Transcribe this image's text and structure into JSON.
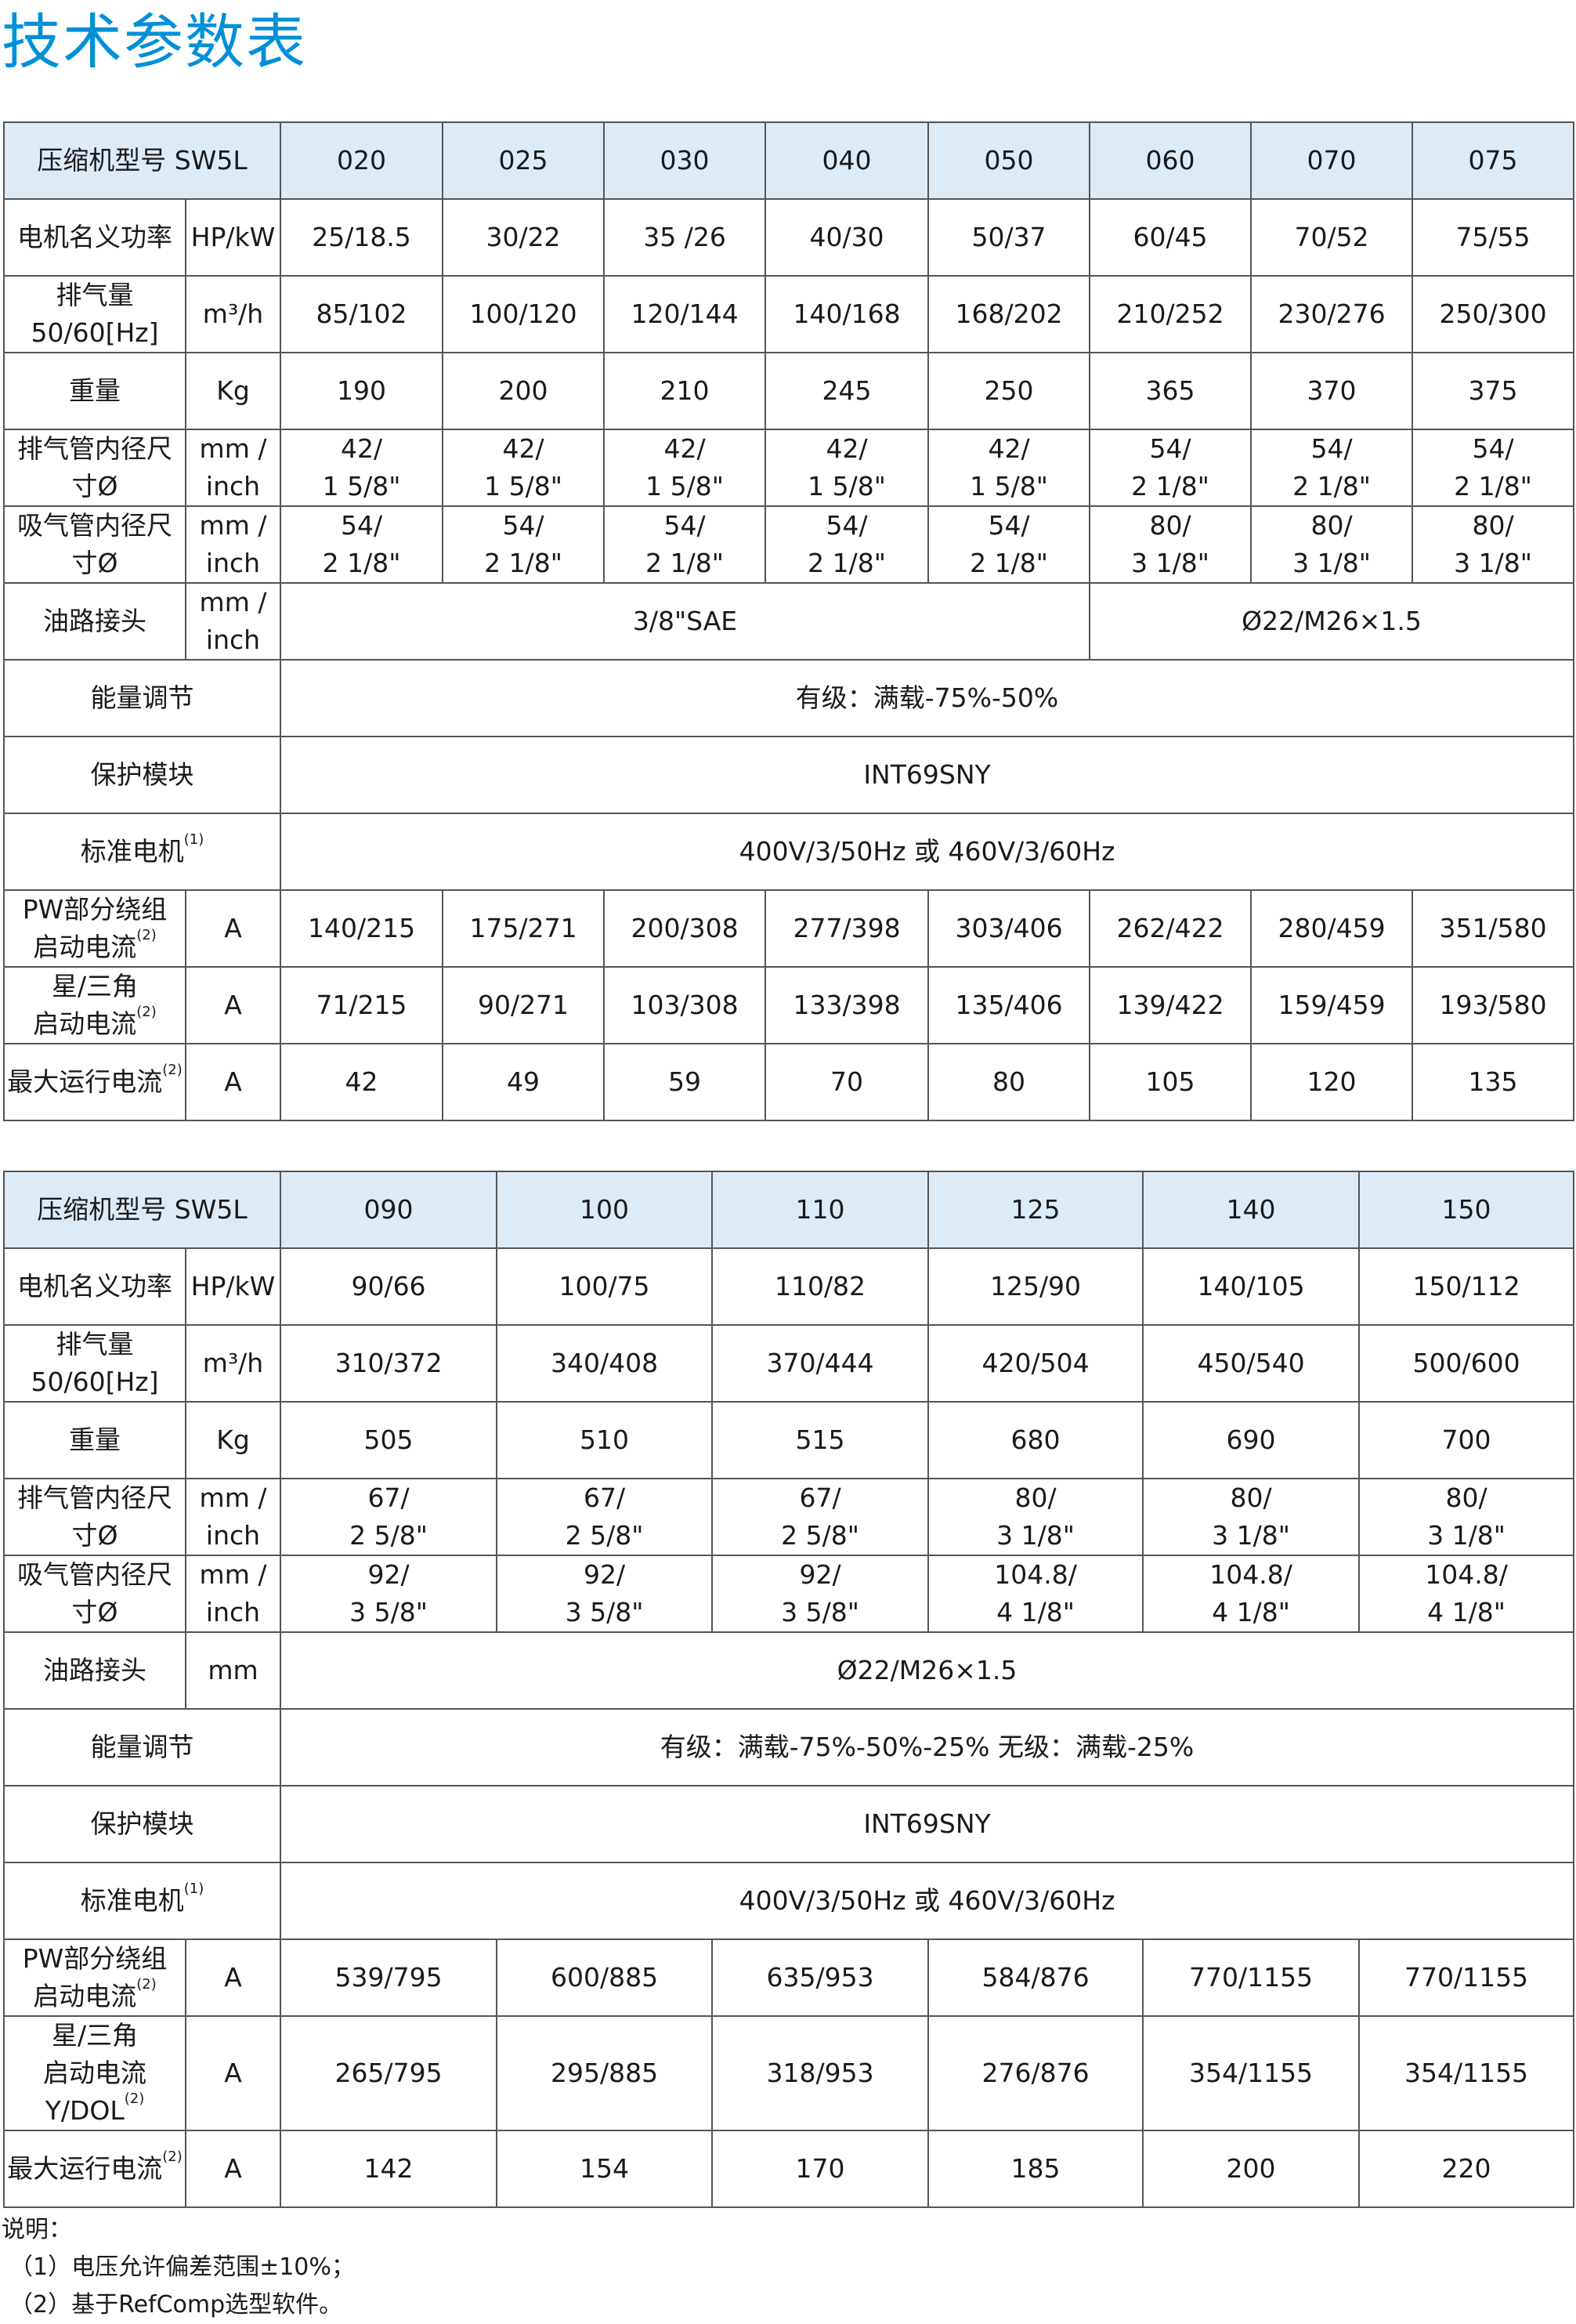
{
  "title": "技术参数表",
  "tables": [
    {
      "model_label": "压缩机型号 SW5L",
      "models": [
        "020",
        "025",
        "030",
        "040",
        "050",
        "060",
        "070",
        "075"
      ],
      "rows": [
        {
          "label": "电机名义功率",
          "unit": "HP/kW",
          "cells": [
            {
              "text": "25/18.5"
            },
            {
              "text": "30/22"
            },
            {
              "text": "35 /26"
            },
            {
              "text": "40/30"
            },
            {
              "text": "50/37"
            },
            {
              "text": "60/45"
            },
            {
              "text": "70/52"
            },
            {
              "text": "75/55"
            }
          ]
        },
        {
          "label": "排气量\n50/60[Hz]",
          "unit": "m³/h",
          "cells": [
            {
              "text": "85/102"
            },
            {
              "text": "100/120"
            },
            {
              "text": "120/144"
            },
            {
              "text": "140/168"
            },
            {
              "text": "168/202"
            },
            {
              "text": "210/252"
            },
            {
              "text": "230/276"
            },
            {
              "text": "250/300"
            }
          ]
        },
        {
          "label": "重量",
          "unit": "Kg",
          "cells": [
            {
              "text": "190"
            },
            {
              "text": "200"
            },
            {
              "text": "210"
            },
            {
              "text": "245"
            },
            {
              "text": "250"
            },
            {
              "text": "365"
            },
            {
              "text": "370"
            },
            {
              "text": "375"
            }
          ]
        },
        {
          "label": "排气管内径尺寸Ø",
          "unit": "mm /\ninch",
          "cells": [
            {
              "text": "42/\n1 5/8\""
            },
            {
              "text": "42/\n1 5/8\""
            },
            {
              "text": "42/\n1 5/8\""
            },
            {
              "text": "42/\n1 5/8\""
            },
            {
              "text": "42/\n1 5/8\""
            },
            {
              "text": "54/\n2 1/8\""
            },
            {
              "text": "54/\n2 1/8\""
            },
            {
              "text": "54/\n2 1/8\""
            }
          ]
        },
        {
          "label": "吸气管内径尺寸Ø",
          "unit": "mm /\ninch",
          "cells": [
            {
              "text": "54/\n2 1/8\""
            },
            {
              "text": "54/\n2 1/8\""
            },
            {
              "text": "54/\n2 1/8\""
            },
            {
              "text": "54/\n2 1/8\""
            },
            {
              "text": "54/\n2 1/8\""
            },
            {
              "text": "80/\n3 1/8\""
            },
            {
              "text": "80/\n3 1/8\""
            },
            {
              "text": "80/\n3 1/8\""
            }
          ]
        },
        {
          "label": "油路接头",
          "unit": "mm /\ninch",
          "cells": [
            {
              "text": "3/8\"SAE",
              "span": 5
            },
            {
              "text": "Ø22/M26×1.5",
              "span": 3
            }
          ]
        },
        {
          "label": "能量调节",
          "cells": [
            {
              "text": "有级：满载-75%-50%",
              "span": 8
            }
          ]
        },
        {
          "label": "保护模块",
          "cells": [
            {
              "text": "INT69SNY",
              "span": 8
            }
          ]
        },
        {
          "label": "标准电机",
          "sup": "(1)",
          "cells": [
            {
              "text": "400V/3/50Hz 或 460V/3/60Hz",
              "span": 8
            }
          ]
        },
        {
          "label": "PW部分绕组\n启动电流",
          "sup": "(2)",
          "unit": "A",
          "cells": [
            {
              "text": "140/215"
            },
            {
              "text": "175/271"
            },
            {
              "text": "200/308"
            },
            {
              "text": "277/398"
            },
            {
              "text": "303/406"
            },
            {
              "text": "262/422"
            },
            {
              "text": "280/459"
            },
            {
              "text": "351/580"
            }
          ]
        },
        {
          "label": "星/三角\n启动电流",
          "sup": "(2)",
          "unit": "A",
          "cells": [
            {
              "text": "71/215"
            },
            {
              "text": "90/271"
            },
            {
              "text": "103/308"
            },
            {
              "text": "133/398"
            },
            {
              "text": "135/406"
            },
            {
              "text": "139/422"
            },
            {
              "text": "159/459"
            },
            {
              "text": "193/580"
            }
          ]
        },
        {
          "label": "最大运行电流",
          "sup": "(2)",
          "unit": "A",
          "cells": [
            {
              "text": "42"
            },
            {
              "text": "49"
            },
            {
              "text": "59"
            },
            {
              "text": "70"
            },
            {
              "text": "80"
            },
            {
              "text": "105"
            },
            {
              "text": "120"
            },
            {
              "text": "135"
            }
          ]
        }
      ]
    },
    {
      "model_label": "压缩机型号 SW5L",
      "models": [
        "090",
        "100",
        "110",
        "125",
        "140",
        "150"
      ],
      "rows": [
        {
          "label": "电机名义功率",
          "unit": "HP/kW",
          "cells": [
            {
              "text": "90/66"
            },
            {
              "text": "100/75"
            },
            {
              "text": "110/82"
            },
            {
              "text": "125/90"
            },
            {
              "text": "140/105"
            },
            {
              "text": "150/112"
            }
          ]
        },
        {
          "label": "排气量\n50/60[Hz]",
          "unit": "m³/h",
          "cells": [
            {
              "text": "310/372"
            },
            {
              "text": "340/408"
            },
            {
              "text": "370/444"
            },
            {
              "text": "420/504"
            },
            {
              "text": "450/540"
            },
            {
              "text": "500/600"
            }
          ]
        },
        {
          "label": "重量",
          "unit": "Kg",
          "cells": [
            {
              "text": "505"
            },
            {
              "text": "510"
            },
            {
              "text": "515"
            },
            {
              "text": "680"
            },
            {
              "text": "690"
            },
            {
              "text": "700"
            }
          ]
        },
        {
          "label": "排气管内径尺寸Ø",
          "unit": "mm /\ninch",
          "cells": [
            {
              "text": "67/\n2 5/8\""
            },
            {
              "text": "67/\n2 5/8\""
            },
            {
              "text": "67/\n2 5/8\""
            },
            {
              "text": "80/\n3 1/8\""
            },
            {
              "text": "80/\n3 1/8\""
            },
            {
              "text": "80/\n3 1/8\""
            }
          ]
        },
        {
          "label": "吸气管内径尺寸Ø",
          "unit": "mm /\ninch",
          "cells": [
            {
              "text": "92/\n3 5/8\""
            },
            {
              "text": "92/\n3 5/8\""
            },
            {
              "text": "92/\n3 5/8\""
            },
            {
              "text": "104.8/\n4 1/8\""
            },
            {
              "text": "104.8/\n4 1/8\""
            },
            {
              "text": "104.8/\n4 1/8\""
            }
          ]
        },
        {
          "label": "油路接头",
          "unit": "mm",
          "cells": [
            {
              "text": "Ø22/M26×1.5",
              "span": 6
            }
          ]
        },
        {
          "label": "能量调节",
          "cells": [
            {
              "text": "有级：满载-75%-50%-25% 无级：满载-25%",
              "span": 6
            }
          ]
        },
        {
          "label": "保护模块",
          "cells": [
            {
              "text": "INT69SNY",
              "span": 6
            }
          ]
        },
        {
          "label": "标准电机",
          "sup": "(1)",
          "cells": [
            {
              "text": "400V/3/50Hz 或 460V/3/60Hz",
              "span": 6
            }
          ]
        },
        {
          "label": "PW部分绕组\n启动电流",
          "sup": "(2)",
          "unit": "A",
          "cells": [
            {
              "text": "539/795"
            },
            {
              "text": "600/885"
            },
            {
              "text": "635/953"
            },
            {
              "text": "584/876"
            },
            {
              "text": "770/1155"
            },
            {
              "text": "770/1155"
            }
          ]
        },
        {
          "label": "星/三角\n启动电流Y/DOL",
          "sup": "(2)",
          "unit": "A",
          "cells": [
            {
              "text": "265/795"
            },
            {
              "text": "295/885"
            },
            {
              "text": "318/953"
            },
            {
              "text": "276/876"
            },
            {
              "text": "354/1155"
            },
            {
              "text": "354/1155"
            }
          ]
        },
        {
          "label": "最大运行电流",
          "sup": "(2)",
          "unit": "A",
          "cells": [
            {
              "text": "142"
            },
            {
              "text": "154"
            },
            {
              "text": "170"
            },
            {
              "text": "185"
            },
            {
              "text": "200"
            },
            {
              "text": "220"
            }
          ]
        }
      ]
    }
  ],
  "notes": {
    "heading": "说明：",
    "items": [
      "（1）电压允许偏差范围±10%；",
      "（2）基于RefComp选型软件。"
    ]
  },
  "colors": {
    "title": "#0090d8",
    "header_bg": "#ddebf7",
    "border": "#555555"
  }
}
